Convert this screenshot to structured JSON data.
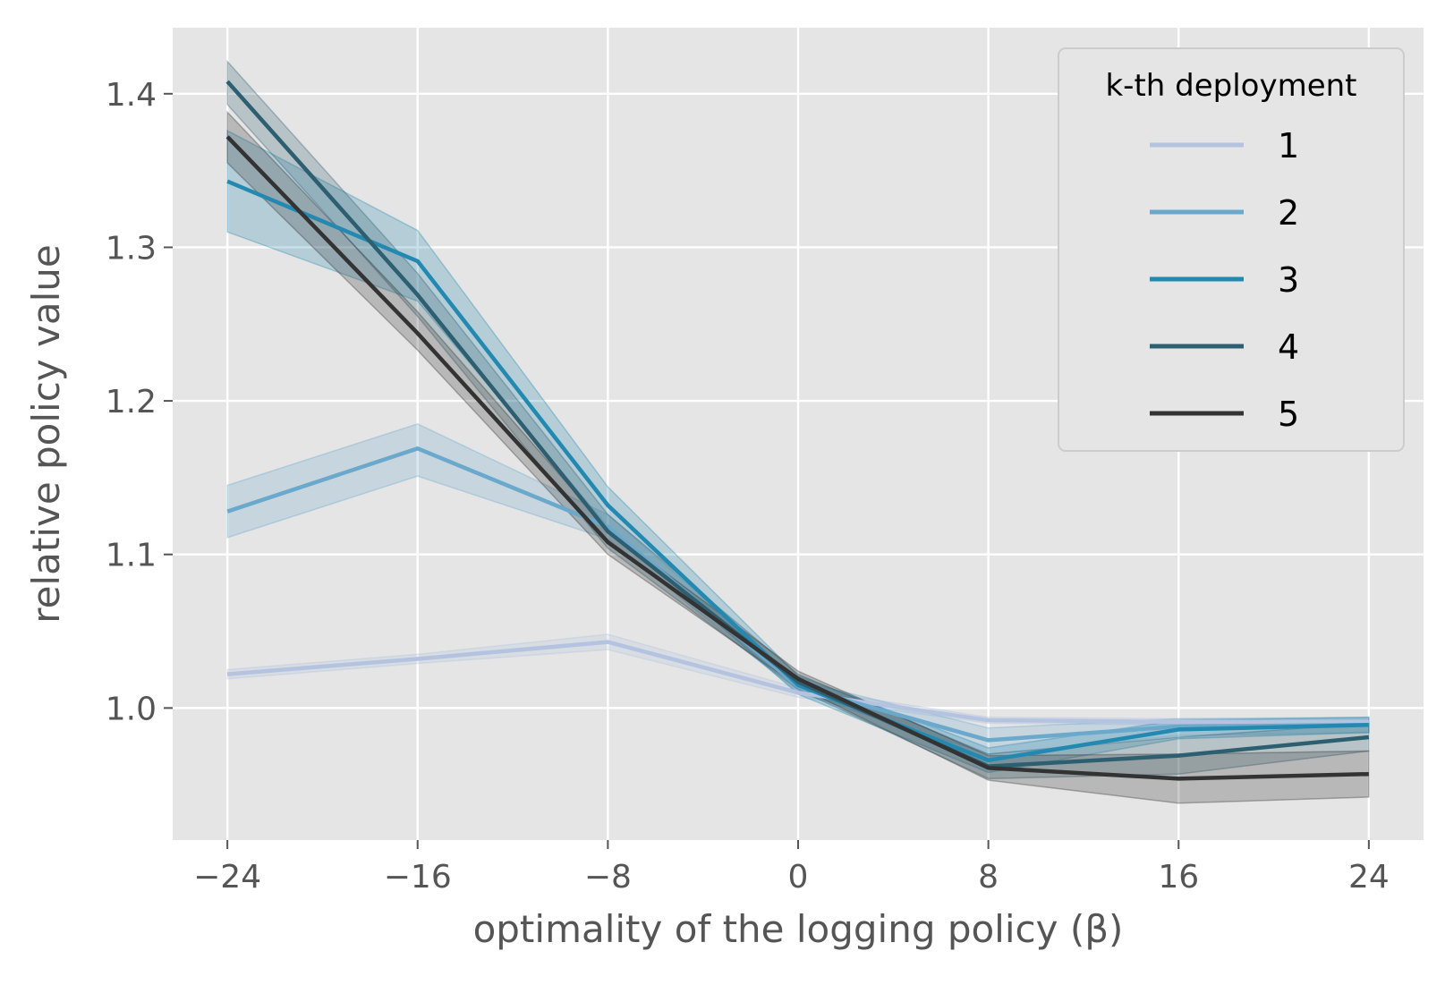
{
  "chart_data": {
    "type": "line",
    "title": "",
    "xlabel": "optimality of the logging policy (β)",
    "ylabel": "relative policy value",
    "x": [
      -24,
      -16,
      -8,
      0,
      8,
      16,
      24
    ],
    "x_tick_labels": [
      "−24",
      "−16",
      "−8",
      "0",
      "8",
      "16",
      "24"
    ],
    "y_ticks": [
      1.0,
      1.1,
      1.2,
      1.3,
      1.4
    ],
    "y_tick_labels": [
      "1.0",
      "1.1",
      "1.2",
      "1.3",
      "1.4"
    ],
    "xlim": [
      -26.3,
      26.3
    ],
    "ylim": [
      0.914,
      1.443
    ],
    "grid": true,
    "legend": {
      "title": "k-th deployment",
      "position": "top-right"
    },
    "series": [
      {
        "name": "1",
        "color": "#b3c3e0",
        "values": [
          1.022,
          1.032,
          1.043,
          1.01,
          0.992,
          0.991,
          0.991
        ],
        "lower": [
          1.019,
          1.029,
          1.038,
          1.007,
          0.99,
          0.989,
          0.989
        ],
        "upper": [
          1.025,
          1.035,
          1.048,
          1.013,
          0.994,
          0.993,
          0.993
        ]
      },
      {
        "name": "2",
        "color": "#6aa8cc",
        "values": [
          1.128,
          1.169,
          1.118,
          1.014,
          0.979,
          0.988,
          0.989
        ],
        "lower": [
          1.111,
          1.151,
          1.11,
          1.01,
          0.97,
          0.982,
          0.984
        ],
        "upper": [
          1.145,
          1.185,
          1.126,
          1.018,
          0.987,
          0.993,
          0.994
        ]
      },
      {
        "name": "3",
        "color": "#2389b0",
        "values": [
          1.343,
          1.291,
          1.132,
          1.015,
          0.966,
          0.986,
          0.989
        ],
        "lower": [
          1.31,
          1.265,
          1.118,
          1.009,
          0.958,
          0.98,
          0.984
        ],
        "upper": [
          1.376,
          1.311,
          1.144,
          1.021,
          0.974,
          0.992,
          0.994
        ]
      },
      {
        "name": "4",
        "color": "#2e5f71",
        "values": [
          1.408,
          1.269,
          1.115,
          1.017,
          0.962,
          0.969,
          0.981
        ],
        "lower": [
          1.393,
          1.255,
          1.104,
          1.012,
          0.954,
          0.957,
          0.972
        ],
        "upper": [
          1.421,
          1.283,
          1.126,
          1.022,
          0.97,
          0.981,
          0.99
        ]
      },
      {
        "name": "5",
        "color": "#333333",
        "values": [
          1.372,
          1.244,
          1.108,
          1.019,
          0.961,
          0.954,
          0.957
        ],
        "lower": [
          1.355,
          1.233,
          1.1,
          1.014,
          0.953,
          0.938,
          0.942
        ],
        "upper": [
          1.388,
          1.258,
          1.116,
          1.024,
          0.969,
          0.97,
          0.972
        ]
      }
    ]
  }
}
